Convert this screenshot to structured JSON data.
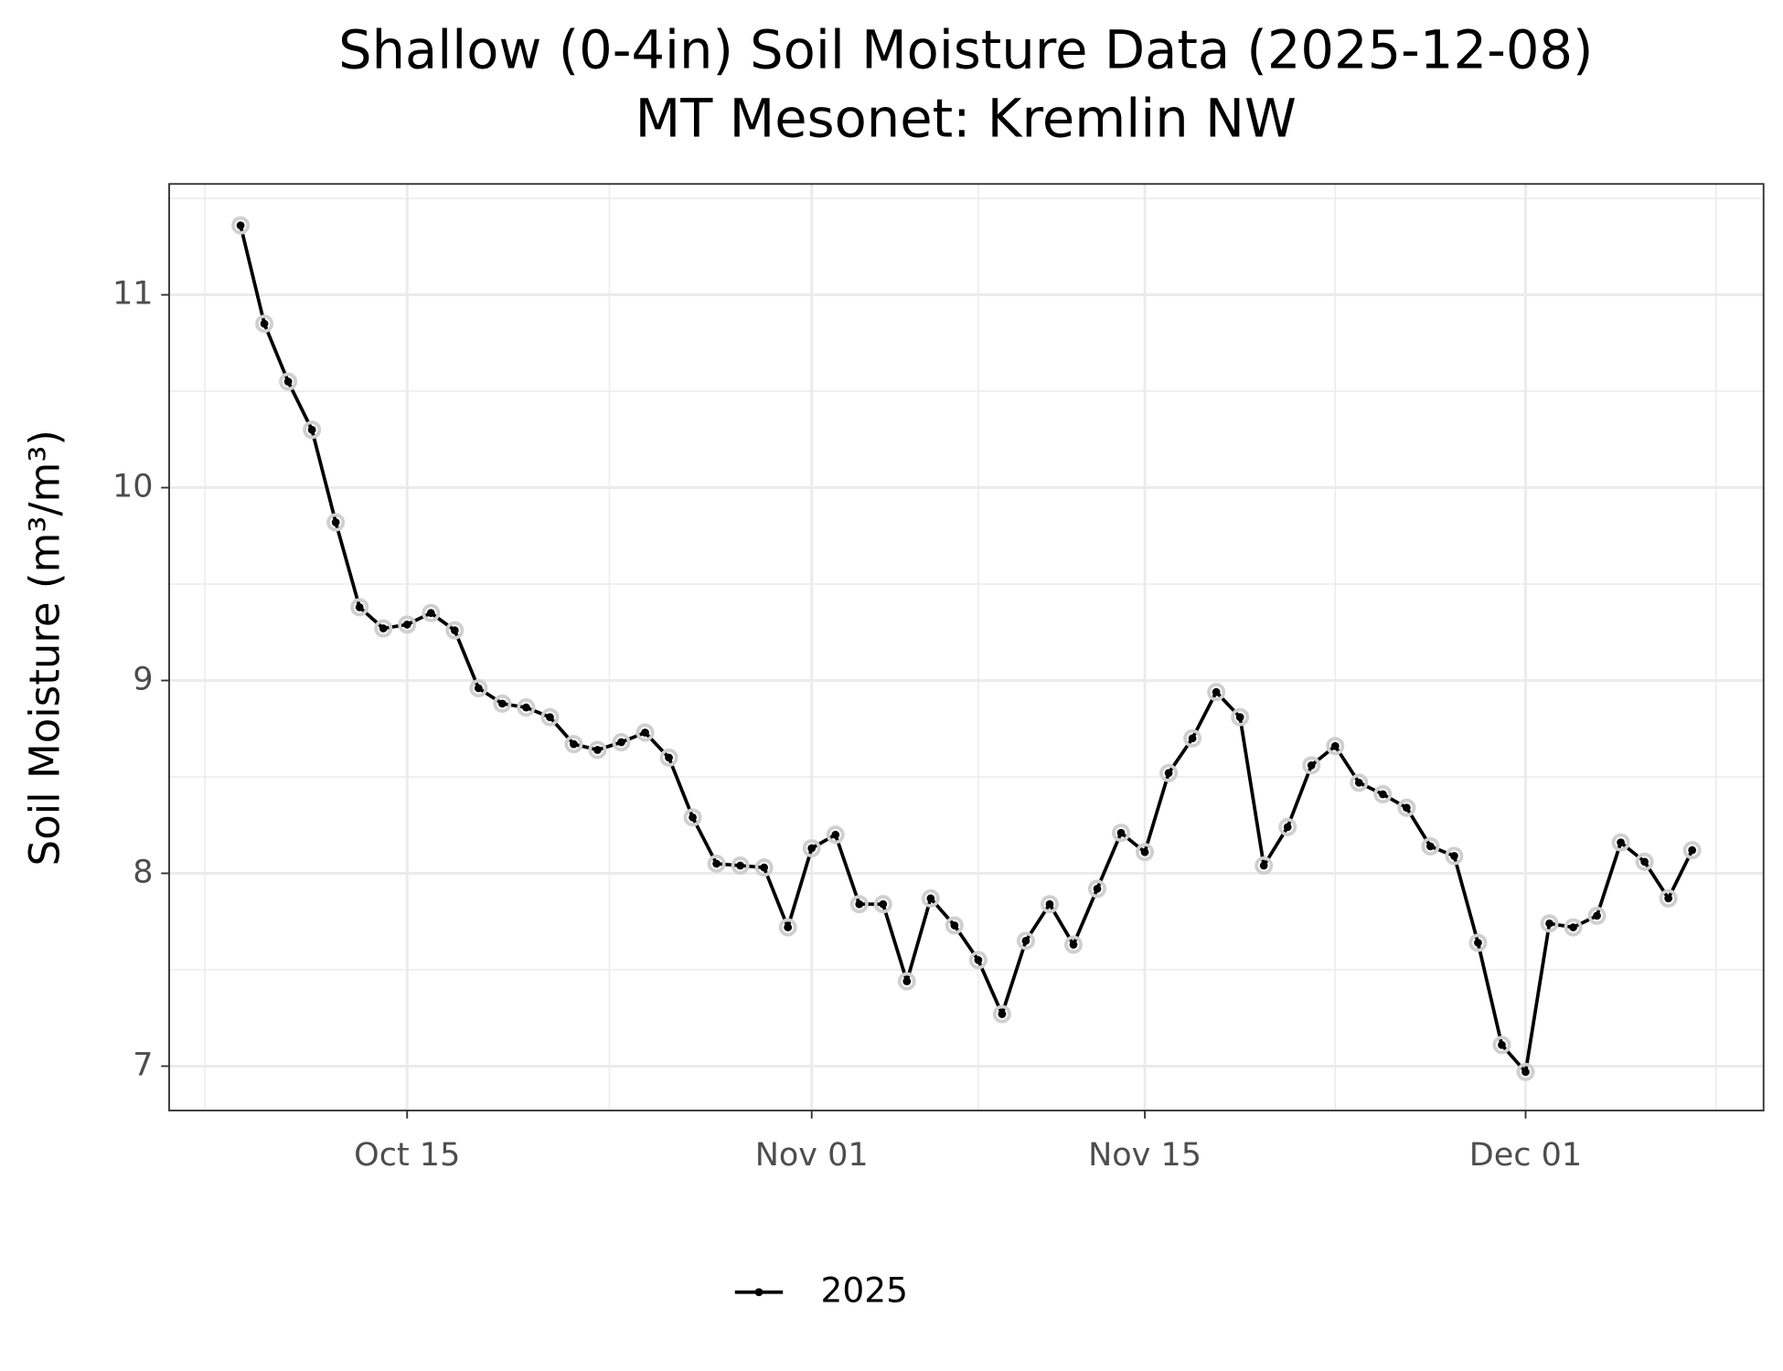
{
  "chart_data": {
    "type": "line",
    "title": "Shallow (0-4in) Soil Moisture Data (2025-12-08)",
    "subtitle": "MT Mesonet: Kremlin NW",
    "y_label": "Soil Moisture (m³/m³)",
    "x": [
      "2025-10-08",
      "2025-10-09",
      "2025-10-10",
      "2025-10-11",
      "2025-10-12",
      "2025-10-13",
      "2025-10-14",
      "2025-10-15",
      "2025-10-16",
      "2025-10-17",
      "2025-10-18",
      "2025-10-19",
      "2025-10-20",
      "2025-10-21",
      "2025-10-22",
      "2025-10-23",
      "2025-10-24",
      "2025-10-25",
      "2025-10-26",
      "2025-10-27",
      "2025-10-28",
      "2025-10-29",
      "2025-10-30",
      "2025-10-31",
      "2025-11-01",
      "2025-11-02",
      "2025-11-03",
      "2025-11-04",
      "2025-11-05",
      "2025-11-06",
      "2025-11-07",
      "2025-11-08",
      "2025-11-09",
      "2025-11-10",
      "2025-11-11",
      "2025-11-12",
      "2025-11-13",
      "2025-11-14",
      "2025-11-15",
      "2025-11-16",
      "2025-11-17",
      "2025-11-18",
      "2025-11-19",
      "2025-11-20",
      "2025-11-21",
      "2025-11-22",
      "2025-11-23",
      "2025-11-24",
      "2025-11-25",
      "2025-11-26",
      "2025-11-27",
      "2025-11-28",
      "2025-11-29",
      "2025-11-30",
      "2025-12-01",
      "2025-12-02",
      "2025-12-03",
      "2025-12-04",
      "2025-12-05",
      "2025-12-06",
      "2025-12-07",
      "2025-12-08"
    ],
    "series": [
      {
        "name": "2025",
        "color": "#000000",
        "values": [
          11.36,
          10.85,
          10.55,
          10.3,
          9.82,
          9.38,
          9.27,
          9.29,
          9.35,
          9.26,
          8.96,
          8.88,
          8.86,
          8.81,
          8.67,
          8.64,
          8.68,
          8.73,
          8.6,
          8.29,
          8.05,
          8.04,
          8.03,
          7.72,
          8.13,
          8.2,
          7.84,
          7.84,
          7.44,
          7.87,
          7.73,
          7.55,
          7.27,
          7.65,
          7.84,
          7.63,
          7.92,
          8.21,
          8.11,
          8.52,
          8.7,
          8.94,
          8.81,
          8.04,
          8.24,
          8.56,
          8.66,
          8.47,
          8.41,
          8.34,
          8.14,
          8.09,
          7.64,
          7.11,
          6.97,
          7.74,
          7.72,
          7.78,
          8.16,
          8.06,
          7.87,
          8.12
        ]
      }
    ],
    "xlim": [
      "2025-10-05",
      "2025-12-11"
    ],
    "xticks": [
      {
        "value": "2025-10-15",
        "label": "Oct 15"
      },
      {
        "value": "2025-11-01",
        "label": "Nov 01"
      },
      {
        "value": "2025-11-15",
        "label": "Nov 15"
      },
      {
        "value": "2025-12-01",
        "label": "Dec 01"
      }
    ],
    "ylim": [
      6.77,
      11.575
    ],
    "yticks": [
      7,
      8,
      9,
      10,
      11
    ],
    "grid": true,
    "legend": "bottom"
  }
}
